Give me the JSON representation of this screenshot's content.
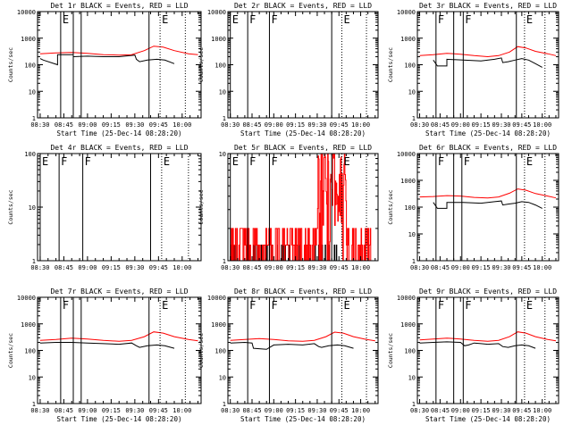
{
  "xlabel": "Start Time (25-Dec-14 08:28:20)",
  "ylabel": "Counts/sec",
  "x_tick_labels": [
    "08:30",
    "08:45",
    "09:00",
    "09:15",
    "09:30",
    "09:45",
    "10:00"
  ],
  "colors": {
    "events": "#000000",
    "lld": "#ff0000"
  },
  "chart_data": [
    {
      "type": "line",
      "title": "Det 1r BLACK = Events, RED = LLD",
      "scale": "log",
      "ylim": [
        1,
        10000
      ],
      "y_ticks": [
        1,
        10,
        100,
        1000,
        10000
      ],
      "y_tick_labels": [
        "1",
        "10",
        "100",
        "1000",
        "10000"
      ],
      "x_tick_labels": [
        "08:30",
        "08:45",
        "09:00",
        "09:15",
        "09:30",
        "09:45",
        "10:00"
      ],
      "xlabel": "Start Time (25-Dec-14 08:28:20)",
      "ylabel": "Counts/sec",
      "markers": [
        {
          "t": "08:43",
          "style": "solid",
          "label": "E"
        },
        {
          "t": "08:51",
          "style": "solid",
          "label": ""
        },
        {
          "t": "08:56",
          "style": "solid",
          "label": ""
        },
        {
          "t": "09:39",
          "style": "solid",
          "label": ""
        },
        {
          "t": "09:46",
          "style": "dotted",
          "label": "E"
        },
        {
          "t": "10:02",
          "style": "dotted",
          "label": ""
        }
      ],
      "series": [
        {
          "name": "Events",
          "color": "#000000",
          "x": [
            "08:30",
            "08:32",
            "08:41",
            "08:41",
            "08:51",
            "08:51",
            "09:00",
            "09:10",
            "09:20",
            "09:30",
            "09:31",
            "09:33",
            "09:38",
            "09:44",
            "09:49",
            "09:55"
          ],
          "y": [
            170,
            150,
            100,
            240,
            240,
            200,
            210,
            200,
            200,
            230,
            160,
            130,
            150,
            160,
            150,
            110
          ]
        },
        {
          "name": "LLD",
          "color": "#ff0000",
          "x": [
            "08:30",
            "08:40",
            "08:50",
            "09:00",
            "09:10",
            "09:20",
            "09:28",
            "09:36",
            "09:42",
            "09:48",
            "09:55",
            "10:04",
            "10:10"
          ],
          "y": [
            260,
            280,
            290,
            270,
            240,
            230,
            240,
            340,
            500,
            460,
            340,
            260,
            240
          ]
        }
      ]
    },
    {
      "type": "line",
      "title": "Det 2r BLACK = Events, RED = LLD",
      "scale": "log",
      "ylim": [
        1,
        10000
      ],
      "y_ticks": [
        1,
        10,
        100,
        1000,
        10000
      ],
      "y_tick_labels": [
        "1",
        "10",
        "100",
        "1000",
        "10000"
      ],
      "x_tick_labels": [
        "08:30",
        "08:45",
        "09:00",
        "09:15",
        "09:30",
        "09:45",
        "10:00"
      ],
      "xlabel": "Start Time (25-Dec-14 08:28:20)",
      "ylabel": "Counts/sec",
      "markers": [
        {
          "t": "08:30",
          "style": "solid",
          "label": "E"
        },
        {
          "t": "08:42",
          "style": "solid",
          "label": "F"
        },
        {
          "t": "08:57",
          "style": "solid",
          "label": "F"
        },
        {
          "t": "09:40",
          "style": "solid",
          "label": ""
        },
        {
          "t": "09:47",
          "style": "dotted",
          "label": "E"
        },
        {
          "t": "10:04",
          "style": "dotted",
          "label": ""
        }
      ],
      "series": []
    },
    {
      "type": "line",
      "title": "Det 3r BLACK = Events, RED = LLD",
      "scale": "log",
      "ylim": [
        1,
        10000
      ],
      "y_ticks": [
        1,
        10,
        100,
        1000,
        10000
      ],
      "y_tick_labels": [
        "1",
        "10",
        "100",
        "1000",
        "10000"
      ],
      "x_tick_labels": [
        "08:30",
        "08:45",
        "09:00",
        "09:15",
        "09:30",
        "09:45",
        "10:00"
      ],
      "xlabel": "Start Time (25-Dec-14 08:28:20)",
      "ylabel": "Counts/sec",
      "markers": [
        {
          "t": "08:42",
          "style": "solid",
          "label": "F"
        },
        {
          "t": "08:55",
          "style": "solid",
          "label": ""
        },
        {
          "t": "09:02",
          "style": "solid",
          "label": "F"
        },
        {
          "t": "09:41",
          "style": "solid",
          "label": ""
        },
        {
          "t": "09:47",
          "style": "dotted",
          "label": "E"
        },
        {
          "t": "10:02",
          "style": "dotted",
          "label": ""
        }
      ],
      "series": [
        {
          "name": "Events",
          "color": "#000000",
          "x": [
            "08:40",
            "08:43",
            "08:50",
            "08:50",
            "09:02",
            "09:15",
            "09:25",
            "09:30",
            "09:31",
            "09:35",
            "09:40",
            "09:45",
            "09:50",
            "09:55",
            "10:00"
          ],
          "y": [
            150,
            90,
            90,
            160,
            150,
            140,
            160,
            180,
            120,
            130,
            150,
            170,
            150,
            110,
            80
          ]
        },
        {
          "name": "LLD",
          "color": "#ff0000",
          "x": [
            "08:30",
            "08:40",
            "08:50",
            "09:00",
            "09:10",
            "09:20",
            "09:28",
            "09:36",
            "09:42",
            "09:48",
            "09:55",
            "10:04",
            "10:10"
          ],
          "y": [
            220,
            240,
            270,
            250,
            220,
            200,
            220,
            300,
            480,
            430,
            320,
            260,
            220
          ]
        }
      ]
    },
    {
      "type": "line",
      "title": "Det 4r BLACK = Events, RED = LLD",
      "scale": "log",
      "ylim": [
        1,
        100
      ],
      "y_ticks": [
        1,
        10,
        100
      ],
      "y_tick_labels": [
        "1",
        "10",
        "100"
      ],
      "x_tick_labels": [
        "08:30",
        "08:45",
        "09:00",
        "09:15",
        "09:30",
        "09:45",
        "10:00"
      ],
      "xlabel": "",
      "ylabel": "Counts/sec",
      "markers": [
        {
          "t": "08:30",
          "style": "solid",
          "label": "E"
        },
        {
          "t": "08:42",
          "style": "solid",
          "label": "F"
        },
        {
          "t": "08:57",
          "style": "solid",
          "label": "F"
        },
        {
          "t": "09:40",
          "style": "solid",
          "label": ""
        },
        {
          "t": "09:47",
          "style": "dotted",
          "label": "E"
        },
        {
          "t": "10:04",
          "style": "dotted",
          "label": ""
        }
      ],
      "series": []
    },
    {
      "type": "line",
      "title": "Det 5r BLACK = Events, RED = LLD",
      "scale": "log",
      "ylim": [
        1,
        10
      ],
      "y_ticks": [
        1,
        10
      ],
      "y_tick_labels": [
        "1",
        "10"
      ],
      "x_tick_labels": [
        "08:30",
        "08:45",
        "09:00",
        "09:15",
        "09:30",
        "09:45",
        "10:00"
      ],
      "xlabel": "",
      "ylabel": "Counts/sec",
      "markers": [
        {
          "t": "08:30",
          "style": "solid",
          "label": "E"
        },
        {
          "t": "08:42",
          "style": "solid",
          "label": "F"
        },
        {
          "t": "08:57",
          "style": "solid",
          "label": "F"
        },
        {
          "t": "09:40",
          "style": "solid",
          "label": ""
        },
        {
          "t": "09:47",
          "style": "dotted",
          "label": "E"
        },
        {
          "t": "10:04",
          "style": "dotted",
          "label": ""
        }
      ],
      "series": [
        {
          "name": "Events",
          "color": "#000000",
          "style": "noise",
          "x_range": [
            "08:30",
            "09:45"
          ],
          "levels": [
            1,
            1.4
          ],
          "density": 0.35
        },
        {
          "name": "LLD",
          "color": "#ff0000",
          "style": "noise",
          "x_range": [
            "08:30",
            "10:07"
          ],
          "levels": [
            1,
            1.4,
            2
          ],
          "density": 0.85
        }
      ]
    },
    {
      "type": "line",
      "title": "Det 6r BLACK = Events, RED = LLD",
      "scale": "log",
      "ylim": [
        1,
        10000
      ],
      "y_ticks": [
        1,
        10,
        100,
        1000,
        10000
      ],
      "y_tick_labels": [
        "1",
        "10",
        "100",
        "1000",
        "10000"
      ],
      "x_tick_labels": [
        "08:30",
        "08:45",
        "09:00",
        "09:15",
        "09:30",
        "09:45",
        "10:00"
      ],
      "xlabel": "",
      "ylabel": "Counts/sec",
      "markers": [
        {
          "t": "08:42",
          "style": "solid",
          "label": "F"
        },
        {
          "t": "08:55",
          "style": "solid",
          "label": ""
        },
        {
          "t": "09:01",
          "style": "solid",
          "label": "F"
        },
        {
          "t": "09:41",
          "style": "solid",
          "label": ""
        },
        {
          "t": "09:47",
          "style": "dotted",
          "label": "E"
        },
        {
          "t": "10:02",
          "style": "dotted",
          "label": ""
        }
      ],
      "series": [
        {
          "name": "Events",
          "color": "#000000",
          "x": [
            "08:40",
            "08:43",
            "08:50",
            "08:50",
            "09:02",
            "09:15",
            "09:25",
            "09:30",
            "09:31",
            "09:35",
            "09:40",
            "09:45",
            "09:50",
            "09:55",
            "10:00"
          ],
          "y": [
            150,
            90,
            90,
            150,
            150,
            140,
            160,
            170,
            120,
            130,
            140,
            160,
            150,
            120,
            90
          ]
        },
        {
          "name": "LLD",
          "color": "#ff0000",
          "x": [
            "08:30",
            "08:40",
            "08:50",
            "09:00",
            "09:10",
            "09:20",
            "09:28",
            "09:36",
            "09:42",
            "09:48",
            "09:55",
            "10:04",
            "10:10"
          ],
          "y": [
            240,
            250,
            270,
            260,
            230,
            220,
            240,
            330,
            480,
            430,
            320,
            260,
            220
          ]
        }
      ]
    },
    {
      "type": "line",
      "title": "Det 7r BLACK = Events, RED = LLD",
      "scale": "log",
      "ylim": [
        1,
        10000
      ],
      "y_ticks": [
        1,
        10,
        100,
        1000,
        10000
      ],
      "y_tick_labels": [
        "1",
        "10",
        "100",
        "1000",
        "10000"
      ],
      "x_tick_labels": [
        "08:30",
        "08:45",
        "09:00",
        "09:15",
        "09:30",
        "09:45",
        "10:00"
      ],
      "xlabel": "Start Time (25-Dec-14 08:28:20)",
      "ylabel": "Counts/sec",
      "markers": [
        {
          "t": "08:43",
          "style": "solid",
          "label": "F"
        },
        {
          "t": "08:51",
          "style": "solid",
          "label": ""
        },
        {
          "t": "08:56",
          "style": "solid",
          "label": ""
        },
        {
          "t": "09:39",
          "style": "solid",
          "label": ""
        },
        {
          "t": "09:46",
          "style": "dotted",
          "label": "E"
        },
        {
          "t": "10:02",
          "style": "dotted",
          "label": ""
        }
      ],
      "series": [
        {
          "name": "Events",
          "color": "#000000",
          "x": [
            "08:30",
            "08:40",
            "08:50",
            "09:00",
            "09:10",
            "09:20",
            "09:28",
            "09:31",
            "09:33",
            "09:38",
            "09:44",
            "09:49",
            "09:55"
          ],
          "y": [
            190,
            200,
            200,
            190,
            180,
            170,
            190,
            150,
            130,
            150,
            160,
            150,
            120
          ]
        },
        {
          "name": "LLD",
          "color": "#ff0000",
          "x": [
            "08:30",
            "08:40",
            "08:50",
            "09:00",
            "09:10",
            "09:20",
            "09:28",
            "09:36",
            "09:42",
            "09:48",
            "09:55",
            "10:04",
            "10:10"
          ],
          "y": [
            240,
            260,
            290,
            270,
            240,
            220,
            240,
            330,
            500,
            450,
            330,
            260,
            230
          ]
        }
      ]
    },
    {
      "type": "line",
      "title": "Det 8r BLACK = Events, RED = LLD",
      "scale": "log",
      "ylim": [
        1,
        10000
      ],
      "y_ticks": [
        1,
        10,
        100,
        1000,
        10000
      ],
      "y_tick_labels": [
        "1",
        "10",
        "100",
        "1000",
        "10000"
      ],
      "x_tick_labels": [
        "08:30",
        "08:45",
        "09:00",
        "09:15",
        "09:30",
        "09:45",
        "10:00"
      ],
      "xlabel": "Start Time (25-Dec-14 08:28:20)",
      "ylabel": "Counts/sec",
      "markers": [
        {
          "t": "08:42",
          "style": "solid",
          "label": "F"
        },
        {
          "t": "08:57",
          "style": "solid",
          "label": "F"
        },
        {
          "t": "09:40",
          "style": "solid",
          "label": ""
        },
        {
          "t": "09:47",
          "style": "dotted",
          "label": "E"
        },
        {
          "t": "10:04",
          "style": "dotted",
          "label": ""
        }
      ],
      "series": [
        {
          "name": "Events",
          "color": "#000000",
          "x": [
            "08:30",
            "08:40",
            "08:45",
            "08:46",
            "08:55",
            "09:00",
            "09:10",
            "09:20",
            "09:28",
            "09:31",
            "09:33",
            "09:38",
            "09:44",
            "09:49",
            "09:55"
          ],
          "y": [
            190,
            200,
            190,
            120,
            110,
            160,
            170,
            160,
            180,
            140,
            130,
            150,
            160,
            150,
            120
          ]
        },
        {
          "name": "LLD",
          "color": "#ff0000",
          "x": [
            "08:30",
            "08:40",
            "08:50",
            "09:00",
            "09:10",
            "09:20",
            "09:28",
            "09:36",
            "09:42",
            "09:48",
            "09:55",
            "10:04",
            "10:10"
          ],
          "y": [
            240,
            260,
            280,
            260,
            230,
            220,
            240,
            330,
            490,
            450,
            330,
            260,
            230
          ]
        }
      ]
    },
    {
      "type": "line",
      "title": "Det 9r BLACK = Events, RED = LLD",
      "scale": "log",
      "ylim": [
        1,
        10000
      ],
      "y_ticks": [
        1,
        10,
        100,
        1000,
        10000
      ],
      "y_tick_labels": [
        "1",
        "10",
        "100",
        "1000",
        "10000"
      ],
      "x_tick_labels": [
        "08:30",
        "08:45",
        "09:00",
        "09:15",
        "09:30",
        "09:45",
        "10:00"
      ],
      "xlabel": "Start Time (25-Dec-14 08:28:20)",
      "ylabel": "Counts/sec",
      "markers": [
        {
          "t": "08:42",
          "style": "solid",
          "label": "F"
        },
        {
          "t": "08:55",
          "style": "solid",
          "label": ""
        },
        {
          "t": "09:02",
          "style": "solid",
          "label": "F"
        },
        {
          "t": "09:41",
          "style": "solid",
          "label": ""
        },
        {
          "t": "09:47",
          "style": "dotted",
          "label": "E"
        },
        {
          "t": "10:02",
          "style": "dotted",
          "label": ""
        }
      ],
      "series": [
        {
          "name": "Events",
          "color": "#000000",
          "x": [
            "08:30",
            "08:40",
            "08:50",
            "09:00",
            "09:03",
            "09:06",
            "09:10",
            "09:15",
            "09:20",
            "09:28",
            "09:31",
            "09:35",
            "09:40",
            "09:45",
            "09:50",
            "09:55"
          ],
          "y": [
            190,
            200,
            210,
            200,
            150,
            160,
            190,
            180,
            170,
            180,
            140,
            130,
            150,
            160,
            150,
            120
          ]
        },
        {
          "name": "LLD",
          "color": "#ff0000",
          "x": [
            "08:30",
            "08:40",
            "08:50",
            "09:00",
            "09:10",
            "09:20",
            "09:28",
            "09:36",
            "09:42",
            "09:48",
            "09:55",
            "10:04",
            "10:10"
          ],
          "y": [
            250,
            270,
            290,
            270,
            240,
            220,
            240,
            330,
            500,
            450,
            330,
            260,
            230
          ]
        }
      ]
    }
  ]
}
